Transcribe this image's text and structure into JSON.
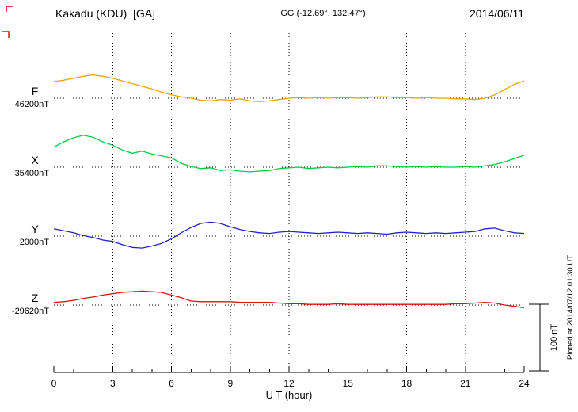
{
  "header": {
    "station": "Kakadu (KDU)  [GA]",
    "coords": "GG (-12.69°, 132.47°)",
    "date": "2014/06/11"
  },
  "axis": {
    "label": "U T (hour)",
    "ticks": [
      0,
      3,
      6,
      9,
      12,
      15,
      18,
      21,
      24
    ],
    "hours_range": [
      0,
      24
    ]
  },
  "scale_bar": {
    "label": "100 nT",
    "value_nT": 100
  },
  "footer_note": "Plotted at 2014/07/12 01:30 UT",
  "colors": {
    "F": "#f0a202",
    "X": "#00cc44",
    "Y": "#2222cc",
    "Z": "#e01010",
    "grid": "#000000",
    "background": "#ffffff"
  },
  "chart_data": {
    "type": "line",
    "title": "Kakadu (KDU) [GA] magnetogram 2014/06/11",
    "xlabel": "U T (hour)",
    "x_range": [
      0,
      24
    ],
    "x_step_hours": 0.5,
    "grid": "dotted baselines and 3-hour verticals",
    "legend_position": "left baseline labels",
    "scale_note": "offsets_nT are deviations in nT from each component baseline; right-side bar shows 100 nT",
    "series": [
      {
        "name": "F",
        "color": "#f0a202",
        "baseline_label": "46200nT",
        "baseline_nT": 46200,
        "offsets_nT": [
          25,
          27,
          30,
          33,
          35,
          33,
          30,
          26,
          22,
          18,
          14,
          9,
          5,
          2,
          0,
          -3,
          -4,
          -2,
          -3,
          -1,
          -4,
          -5,
          -4,
          -2,
          0,
          1,
          0,
          1,
          0,
          1,
          1,
          0,
          1,
          2,
          2,
          1,
          1,
          0,
          1,
          0,
          0,
          -1,
          -1,
          -2,
          0,
          5,
          13,
          21,
          26
        ]
      },
      {
        "name": "X",
        "color": "#00cc44",
        "baseline_label": "35400nT",
        "baseline_nT": 35400,
        "offsets_nT": [
          30,
          38,
          44,
          48,
          45,
          38,
          33,
          26,
          21,
          24,
          20,
          17,
          14,
          6,
          1,
          -2,
          -1,
          -5,
          -4,
          -6,
          -7,
          -6,
          -5,
          -2,
          -1,
          0,
          -2,
          -1,
          0,
          -1,
          0,
          1,
          0,
          2,
          2,
          1,
          0,
          1,
          0,
          1,
          0,
          0,
          1,
          0,
          2,
          4,
          8,
          13,
          18
        ]
      },
      {
        "name": "Y",
        "color": "#2222cc",
        "baseline_label": "2000nT",
        "baseline_nT": 2000,
        "offsets_nT": [
          11,
          8,
          5,
          1,
          -2,
          -6,
          -8,
          -13,
          -17,
          -18,
          -15,
          -11,
          -4,
          5,
          13,
          19,
          21,
          19,
          14,
          10,
          7,
          5,
          4,
          6,
          7,
          6,
          5,
          4,
          5,
          6,
          5,
          4,
          5,
          4,
          3,
          5,
          6,
          5,
          4,
          5,
          4,
          5,
          6,
          7,
          11,
          12,
          8,
          5,
          4
        ]
      },
      {
        "name": "Z",
        "color": "#e01010",
        "baseline_label": "-29620nT",
        "baseline_nT": -29620,
        "offsets_nT": [
          4,
          5,
          7,
          10,
          12,
          15,
          17,
          19,
          20,
          21,
          20,
          19,
          15,
          11,
          6,
          5,
          5,
          5,
          5,
          4,
          4,
          4,
          4,
          3,
          2,
          2,
          1,
          1,
          1,
          2,
          1,
          1,
          1,
          1,
          1,
          1,
          1,
          1,
          1,
          1,
          1,
          2,
          2,
          3,
          4,
          3,
          0,
          -2,
          -4
        ]
      }
    ]
  }
}
